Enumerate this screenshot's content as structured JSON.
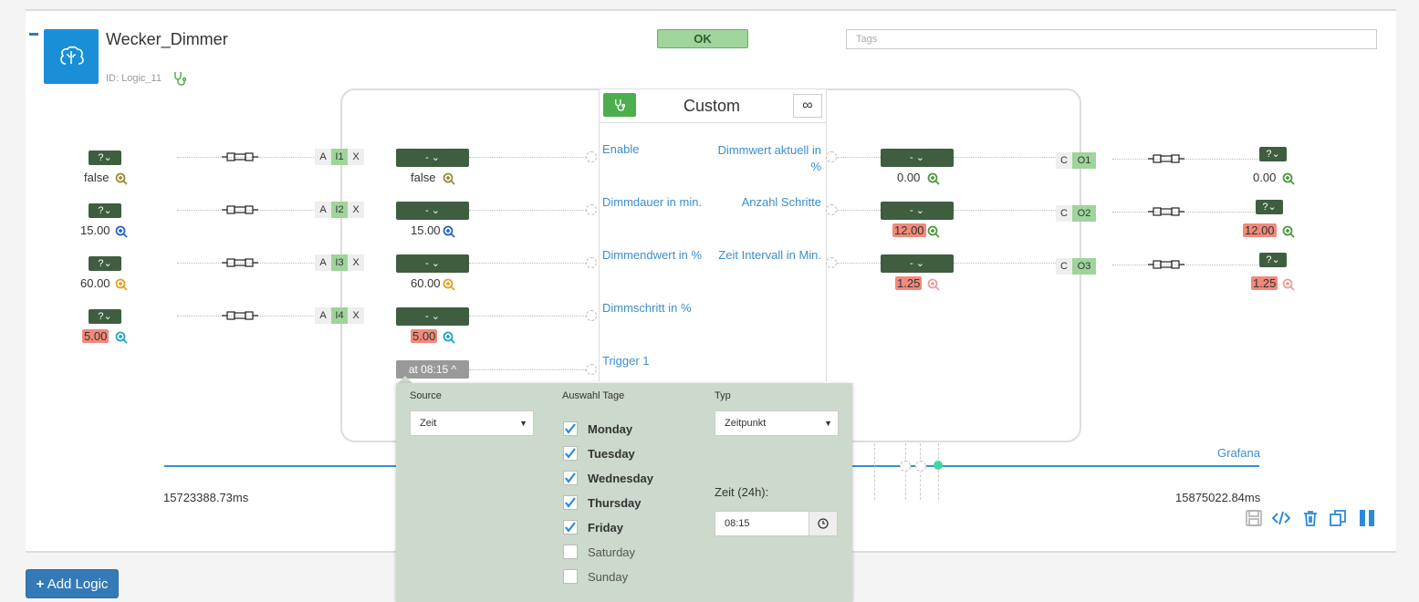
{
  "logic": {
    "title": "Wecker_Dimmer",
    "id_label": "ID: Logic_11",
    "status": "OK",
    "tags_placeholder": "Tags"
  },
  "block": {
    "title": "Custom",
    "inf_symbol": "∞",
    "inputs": [
      {
        "label": "Enable",
        "port": "I1",
        "value": "false",
        "source_value": "false",
        "value_highlight": false
      },
      {
        "label": "Dimmdauer in min.",
        "port": "I2",
        "value": "15.00",
        "source_value": "15.00",
        "value_highlight": false
      },
      {
        "label": "Dimmendwert in %",
        "port": "I3",
        "value": "60.00",
        "source_value": "60.00",
        "value_highlight": false
      },
      {
        "label": "Dimmschritt in %",
        "port": "I4",
        "value": "5.00",
        "source_value": "5.00",
        "value_highlight": true
      }
    ],
    "trigger_label": "Trigger 1",
    "outputs": [
      {
        "label": "Dimmwert aktuell in %",
        "port": "O1",
        "value": "0.00",
        "target_value": "0.00"
      },
      {
        "label": "Anzahl Schritte",
        "port": "O2",
        "value": "12.00",
        "target_value": "12.00"
      },
      {
        "label": "Zeit Intervall in Min.",
        "port": "O3",
        "value": "1.25",
        "target_value": "1.25"
      }
    ],
    "a_label": "A",
    "x_label": "X",
    "c_label": "C",
    "dropdown_label": "- ⌄",
    "qdrop_label": "?⌄"
  },
  "trigger": {
    "button_label": "at 08:15 ^",
    "source_label": "Source",
    "source_value": "Zeit",
    "days_label": "Auswahl Tage",
    "days": [
      {
        "name": "Monday",
        "checked": true
      },
      {
        "name": "Tuesday",
        "checked": true
      },
      {
        "name": "Wednesday",
        "checked": true
      },
      {
        "name": "Thursday",
        "checked": true
      },
      {
        "name": "Friday",
        "checked": true
      },
      {
        "name": "Saturday",
        "checked": false
      },
      {
        "name": "Sunday",
        "checked": false
      }
    ],
    "type_label": "Typ",
    "type_value": "Zeitpunkt",
    "time_label": "Zeit (24h):",
    "time_value": "08:15"
  },
  "timeline": {
    "start": "15723388.73ms",
    "end": "15875022.84ms",
    "grafana": "Grafana"
  },
  "footer": {
    "add_logic": "Add Logic"
  },
  "colors": {
    "accent": "#337ab7",
    "ok_green": "#9fd49b",
    "dark_green": "#3f5e40",
    "highlight_red": "#f08a7a"
  }
}
